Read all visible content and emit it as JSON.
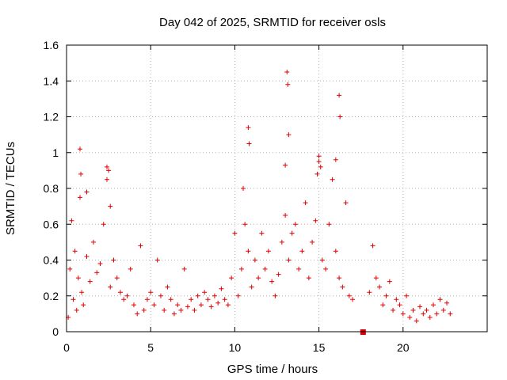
{
  "chart_data": {
    "type": "scatter",
    "title": "Day 042 of 2025, SRMTID for receiver osls",
    "xlabel": "GPS time / hours",
    "ylabel": "SRMTID / TECUs",
    "xlim": [
      0,
      25
    ],
    "ylim": [
      0,
      1.6
    ],
    "xticks": [
      0,
      5,
      10,
      15,
      20
    ],
    "xtick_labels": [
      "0",
      "5",
      "10",
      "15",
      "20"
    ],
    "yticks": [
      0,
      0.2,
      0.4,
      0.6,
      0.8,
      1,
      1.2,
      1.4,
      1.6
    ],
    "ytick_labels": [
      "0",
      "0.2",
      "0.4",
      "0.6",
      "0.8",
      "1",
      "1.2",
      "1.4",
      "1.6"
    ],
    "grid": true,
    "marker": "plus",
    "color": "#e00000",
    "square_marker": {
      "x": 17.6,
      "y": 0.0
    },
    "series": [
      {
        "name": "SRMTID",
        "x": [
          0.1,
          0.2,
          0.3,
          0.4,
          0.5,
          0.6,
          0.7,
          0.8,
          0.9,
          1.0,
          1.2,
          1.4,
          1.6,
          1.8,
          2.0,
          2.2,
          2.4,
          2.6,
          2.8,
          3.0,
          3.2,
          3.4,
          3.6,
          3.8,
          4.0,
          4.2,
          4.4,
          4.6,
          4.8,
          5.0,
          5.2,
          5.4,
          5.6,
          5.8,
          6.0,
          6.2,
          6.4,
          6.6,
          6.8,
          7.0,
          7.2,
          7.4,
          7.6,
          7.8,
          8.0,
          8.2,
          8.4,
          8.6,
          8.8,
          9.0,
          9.2,
          9.4,
          9.6,
          9.8,
          10.0,
          10.2,
          10.4,
          10.6,
          10.8,
          11.0,
          11.2,
          11.4,
          11.6,
          11.8,
          12.0,
          12.2,
          12.4,
          12.6,
          12.8,
          13.0,
          13.2,
          13.4,
          13.6,
          13.8,
          14.0,
          14.2,
          14.4,
          14.6,
          14.8,
          15.0,
          15.2,
          15.4,
          15.6,
          15.8,
          16.0,
          16.2,
          16.4,
          16.6,
          16.8,
          17.0,
          18.0,
          18.2,
          18.4,
          18.6,
          18.8,
          19.0,
          19.2,
          19.4,
          19.6,
          19.8,
          20.0,
          20.2,
          20.4,
          20.6,
          20.8,
          21.0,
          21.2,
          21.4,
          21.6,
          21.8,
          22.0,
          22.2,
          22.4,
          22.6,
          22.8,
          0.8,
          0.85,
          2.4,
          2.5,
          10.8,
          10.85,
          13.1,
          13.15,
          13.2,
          16.2,
          16.25,
          15.0,
          15.1,
          14.9,
          16.0,
          10.5,
          13.0,
          1.2,
          2.6
        ],
        "y": [
          0.08,
          0.35,
          0.62,
          0.18,
          0.45,
          0.12,
          0.3,
          0.75,
          0.22,
          0.15,
          0.42,
          0.28,
          0.5,
          0.33,
          0.38,
          0.6,
          0.85,
          0.25,
          0.4,
          0.3,
          0.22,
          0.18,
          0.2,
          0.35,
          0.15,
          0.1,
          0.48,
          0.12,
          0.18,
          0.22,
          0.15,
          0.4,
          0.2,
          0.12,
          0.25,
          0.18,
          0.1,
          0.15,
          0.12,
          0.35,
          0.14,
          0.18,
          0.12,
          0.2,
          0.15,
          0.22,
          0.18,
          0.14,
          0.2,
          0.16,
          0.24,
          0.18,
          0.15,
          0.3,
          0.55,
          0.2,
          0.35,
          0.6,
          0.45,
          0.25,
          0.4,
          0.3,
          0.55,
          0.35,
          0.45,
          0.28,
          0.2,
          0.32,
          0.5,
          0.65,
          0.4,
          0.55,
          0.6,
          0.35,
          0.45,
          0.72,
          0.3,
          0.5,
          0.62,
          0.95,
          0.4,
          0.35,
          0.6,
          0.85,
          0.45,
          0.3,
          0.25,
          0.72,
          0.2,
          0.18,
          0.22,
          0.48,
          0.3,
          0.25,
          0.15,
          0.2,
          0.28,
          0.12,
          0.18,
          0.15,
          0.1,
          0.2,
          0.08,
          0.12,
          0.06,
          0.14,
          0.1,
          0.12,
          0.08,
          0.15,
          0.1,
          0.18,
          0.12,
          0.16,
          0.1,
          1.02,
          0.88,
          0.92,
          0.9,
          1.14,
          1.05,
          1.45,
          1.38,
          1.1,
          1.32,
          1.2,
          0.98,
          0.92,
          0.88,
          0.96,
          0.8,
          0.93,
          0.78,
          0.7
        ]
      }
    ]
  }
}
